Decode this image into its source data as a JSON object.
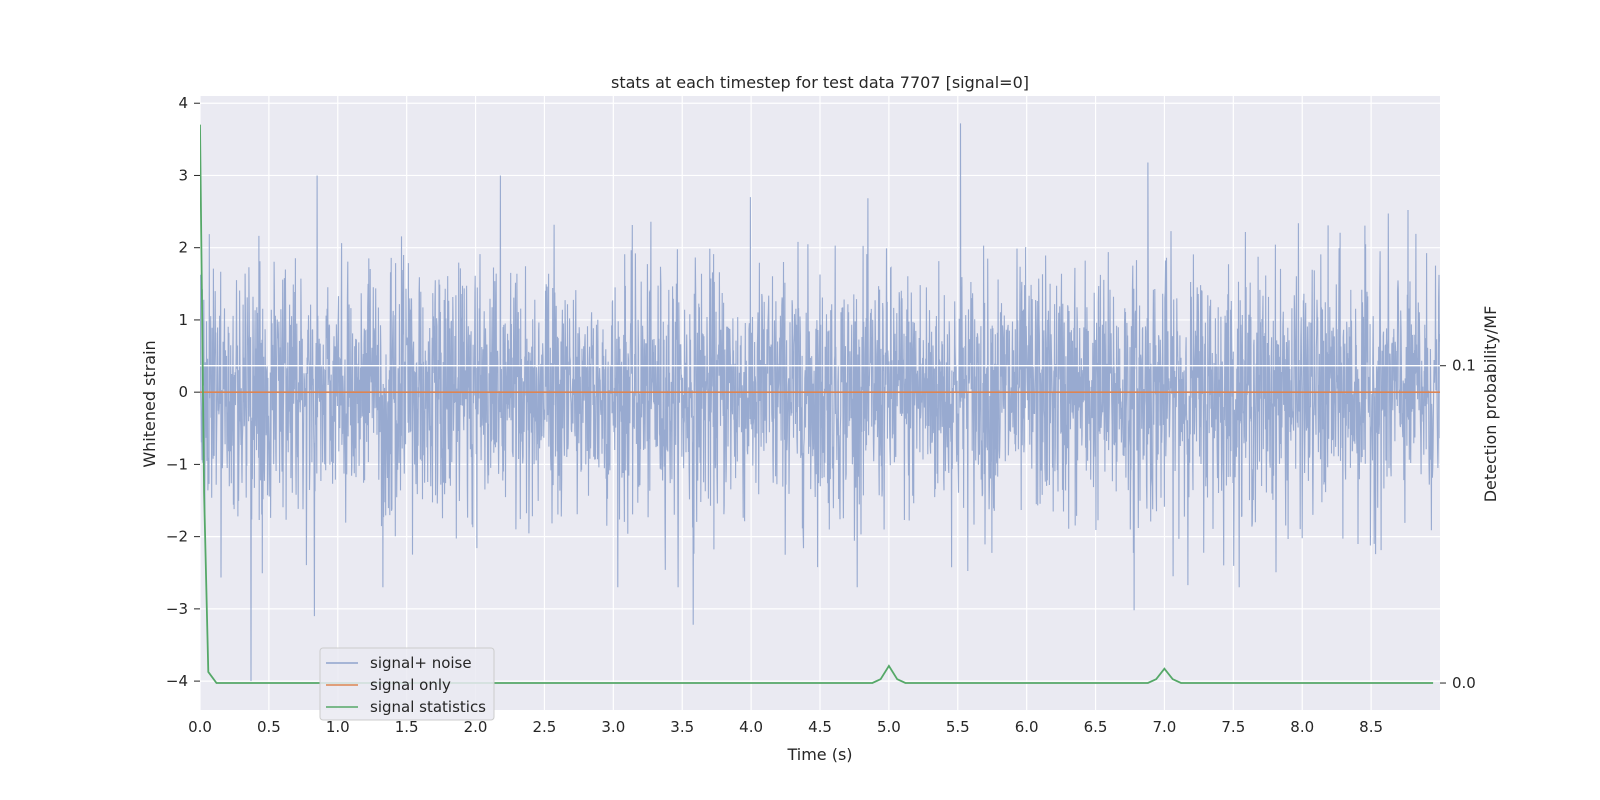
{
  "chart_data": {
    "type": "line",
    "title": "stats at each timestep for test data 7707 [signal=0]",
    "xlabel": "Time (s)",
    "ylabel": "Whitened strain",
    "y2label": "Detection probability/MF",
    "xlim": [
      0.0,
      9.0
    ],
    "ylim": [
      -4.4,
      4.1
    ],
    "y2lim": [
      -0.0085,
      0.185
    ],
    "x_ticks": [
      "0.0",
      "0.5",
      "1.0",
      "1.5",
      "2.0",
      "2.5",
      "3.0",
      "3.5",
      "4.0",
      "4.5",
      "5.0",
      "5.5",
      "6.0",
      "6.5",
      "7.0",
      "7.5",
      "8.0",
      "8.5"
    ],
    "y_ticks": [
      "−4",
      "−3",
      "−2",
      "−1",
      "0",
      "1",
      "2",
      "3",
      "4"
    ],
    "y2_ticks": [
      "0.0",
      "0.1"
    ],
    "grid": true,
    "legend_position": "lower-left",
    "background": "#eaeaf2",
    "series": [
      {
        "name": "signal+ noise",
        "color": "#8fa3cc",
        "description": "whitened noise, approx. N(0,0.85), sampled densely over 0–9 s",
        "noise_std": 0.85,
        "notable_peaks": [
          {
            "x": 0.37,
            "y": -4.0
          },
          {
            "x": 5.52,
            "y": 3.72
          },
          {
            "x": 6.88,
            "y": 3.18
          },
          {
            "x": 0.85,
            "y": 3.0
          },
          {
            "x": 2.18,
            "y": 3.0
          },
          {
            "x": 3.58,
            "y": -3.22
          },
          {
            "x": 6.78,
            "y": -3.02
          },
          {
            "x": 0.83,
            "y": -3.1
          }
        ]
      },
      {
        "name": "signal only",
        "color": "#dd8452",
        "x": [
          0.0,
          9.0
        ],
        "y": [
          0.0,
          0.0
        ]
      },
      {
        "name": "signal statistics",
        "color": "#55a868",
        "axis": "y2",
        "x": [
          0.0,
          0.03,
          0.06,
          0.12,
          0.5,
          1.0,
          2.0,
          3.0,
          4.0,
          4.88,
          4.94,
          5.0,
          5.06,
          5.12,
          5.5,
          6.0,
          6.5,
          6.88,
          6.94,
          7.0,
          7.06,
          7.12,
          7.5,
          8.0,
          8.5,
          8.95
        ],
        "y": [
          0.176,
          0.06,
          0.0035,
          0.0,
          0.0,
          0.0,
          0.0,
          0.0,
          0.0,
          0.0,
          0.0012,
          0.0054,
          0.0012,
          0.0,
          0.0,
          0.0,
          0.0,
          0.0,
          0.0012,
          0.0045,
          0.0012,
          0.0,
          0.0,
          0.0,
          0.0,
          0.0
        ]
      }
    ],
    "horizontal_line": {
      "axis": "y2",
      "y": 0.1,
      "color": "#ffffff"
    }
  }
}
